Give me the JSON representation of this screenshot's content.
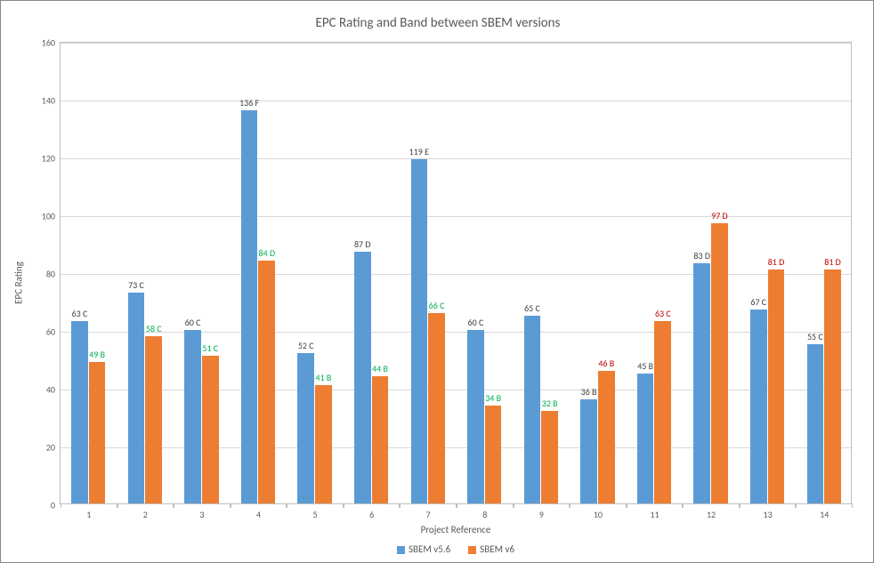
{
  "chart": {
    "type": "bar",
    "title": "EPC Rating and Band between SBEM versions",
    "title_fontsize": 15,
    "title_color": "#595959",
    "xlabel": "Project Reference",
    "ylabel": "EPC Rating",
    "label_fontsize": 11,
    "axis_text_color": "#595959",
    "ylim": [
      0,
      160
    ],
    "ytick_step": 20,
    "yticks": [
      0,
      20,
      40,
      60,
      80,
      100,
      120,
      140,
      160
    ],
    "grid_color": "#d9d9d9",
    "border_color": "#bfbfbf",
    "background_color": "#ffffff",
    "categories": [
      "1",
      "2",
      "3",
      "4",
      "5",
      "6",
      "7",
      "8",
      "9",
      "10",
      "11",
      "12",
      "13",
      "14"
    ],
    "bar_gap_ratio": 0.38,
    "series": [
      {
        "name": "SBEM v5.6",
        "color": "#5b9bd5",
        "label_color": "#404040",
        "points": [
          {
            "v": 63,
            "label": "63 C"
          },
          {
            "v": 73,
            "label": "73 C"
          },
          {
            "v": 60,
            "label": "60 C"
          },
          {
            "v": 136,
            "label": "136 F"
          },
          {
            "v": 52,
            "label": "52 C"
          },
          {
            "v": 87,
            "label": "87 D"
          },
          {
            "v": 119,
            "label": "119 E"
          },
          {
            "v": 60,
            "label": "60 C"
          },
          {
            "v": 65,
            "label": "65 C"
          },
          {
            "v": 36,
            "label": "36 B"
          },
          {
            "v": 45,
            "label": "45 B"
          },
          {
            "v": 83,
            "label": "83 D"
          },
          {
            "v": 67,
            "label": "67 C"
          },
          {
            "v": 55,
            "label": "55 C"
          }
        ]
      },
      {
        "name": "SBEM v6",
        "color": "#ed7d31",
        "points": [
          {
            "v": 49,
            "label": "49 B",
            "label_color": "#00b050"
          },
          {
            "v": 58,
            "label": "58 C",
            "label_color": "#00b050"
          },
          {
            "v": 51,
            "label": "51 C",
            "label_color": "#00b050"
          },
          {
            "v": 84,
            "label": "84 D",
            "label_color": "#00b050"
          },
          {
            "v": 41,
            "label": "41 B",
            "label_color": "#00b050"
          },
          {
            "v": 44,
            "label": "44 B",
            "label_color": "#00b050"
          },
          {
            "v": 66,
            "label": "66 C",
            "label_color": "#00b050"
          },
          {
            "v": 34,
            "label": "34 B",
            "label_color": "#00b050"
          },
          {
            "v": 32,
            "label": "32 B",
            "label_color": "#00b050"
          },
          {
            "v": 46,
            "label": "46 B",
            "label_color": "#c00000"
          },
          {
            "v": 63,
            "label": "63 C",
            "label_color": "#c00000"
          },
          {
            "v": 97,
            "label": "97 D",
            "label_color": "#c00000"
          },
          {
            "v": 81,
            "label": "81 D",
            "label_color": "#c00000"
          },
          {
            "v": 81,
            "label": "81 D",
            "label_color": "#c00000"
          }
        ]
      }
    ],
    "legend_position": "bottom"
  }
}
